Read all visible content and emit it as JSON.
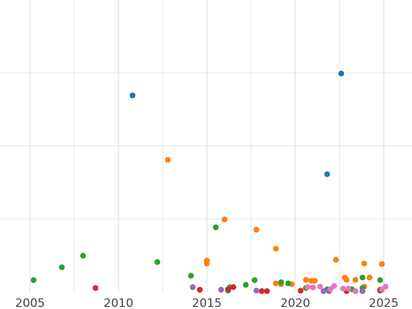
{
  "chart_data": {
    "type": "scatter",
    "xlim": [
      2003.3,
      2026.6
    ],
    "ylim": [
      0,
      1
    ],
    "grid": true,
    "x_ticks": [
      2005,
      2010,
      2015,
      2020,
      2025
    ],
    "x_tick_labels": [
      "2005",
      "2010",
      "2015",
      "2020",
      "2025"
    ],
    "y_gridlines": [
      0.25,
      0.5,
      0.75
    ],
    "legend": "none",
    "colors": {
      "blue": "#1f77b4",
      "orange": "#ff7f0e",
      "green": "#2ca02c",
      "red": "#d62728",
      "purple": "#9467bd",
      "pink": "#e377c2"
    },
    "series": [
      {
        "color": "blue",
        "points": [
          {
            "x": 2010.8,
            "y": 0.673
          },
          {
            "x": 2021.8,
            "y": 0.403
          },
          {
            "x": 2022.6,
            "y": 0.748
          }
        ]
      },
      {
        "color": "orange",
        "points": [
          {
            "x": 2012.8,
            "y": 0.452
          },
          {
            "x": 2015.0,
            "y": 0.107
          },
          {
            "x": 2015.0,
            "y": 0.097
          },
          {
            "x": 2016.0,
            "y": 0.248
          },
          {
            "x": 2017.8,
            "y": 0.213
          },
          {
            "x": 2018.9,
            "y": 0.148
          },
          {
            "x": 2018.9,
            "y": 0.029
          },
          {
            "x": 2019.2,
            "y": 0.026
          },
          {
            "x": 2019.8,
            "y": 0.026
          },
          {
            "x": 2020.6,
            "y": 0.041
          },
          {
            "x": 2020.9,
            "y": 0.038
          },
          {
            "x": 2021.1,
            "y": 0.038
          },
          {
            "x": 2022.3,
            "y": 0.11
          },
          {
            "x": 2022.8,
            "y": 0.049
          },
          {
            "x": 2022.9,
            "y": 0.041
          },
          {
            "x": 2023.4,
            "y": 0.041
          },
          {
            "x": 2023.9,
            "y": 0.018
          },
          {
            "x": 2023.9,
            "y": 0.097
          },
          {
            "x": 2024.2,
            "y": 0.049
          },
          {
            "x": 2024.9,
            "y": 0.095
          },
          {
            "x": 2024.9,
            "y": 0.007
          }
        ]
      },
      {
        "color": "green",
        "points": [
          {
            "x": 2005.2,
            "y": 0.04
          },
          {
            "x": 2006.8,
            "y": 0.084
          },
          {
            "x": 2008.0,
            "y": 0.124
          },
          {
            "x": 2012.2,
            "y": 0.102
          },
          {
            "x": 2014.1,
            "y": 0.055
          },
          {
            "x": 2015.5,
            "y": 0.221
          },
          {
            "x": 2016.2,
            "y": 0.004
          },
          {
            "x": 2016.3,
            "y": 0.016
          },
          {
            "x": 2017.2,
            "y": 0.024
          },
          {
            "x": 2017.7,
            "y": 0.04
          },
          {
            "x": 2019.2,
            "y": 0.033
          },
          {
            "x": 2019.6,
            "y": 0.029
          },
          {
            "x": 2020.6,
            "y": 0.013
          },
          {
            "x": 2021.8,
            "y": 0.008
          },
          {
            "x": 2023.2,
            "y": 0.009
          },
          {
            "x": 2023.8,
            "y": 0.049
          },
          {
            "x": 2023.8,
            "y": 0.013
          },
          {
            "x": 2024.8,
            "y": 0.04
          },
          {
            "x": 2024.8,
            "y": 0.004
          }
        ]
      },
      {
        "color": "red",
        "points": [
          {
            "x": 2008.7,
            "y": 0.013
          },
          {
            "x": 2014.6,
            "y": 0.007
          },
          {
            "x": 2016.2,
            "y": 0.009
          },
          {
            "x": 2016.5,
            "y": 0.016
          },
          {
            "x": 2018.1,
            "y": 0.002
          },
          {
            "x": 2018.4,
            "y": 0.002
          },
          {
            "x": 2020.3,
            "y": 0.004
          },
          {
            "x": 2022.9,
            "y": 0.001
          },
          {
            "x": 2024.8,
            "y": 0.007
          }
        ]
      },
      {
        "color": "purple",
        "points": [
          {
            "x": 2014.2,
            "y": 0.016
          },
          {
            "x": 2015.8,
            "y": 0.007
          },
          {
            "x": 2017.8,
            "y": 0.004
          },
          {
            "x": 2021.6,
            "y": 0.001
          },
          {
            "x": 2021.9,
            "y": 0.001
          },
          {
            "x": 2023.4,
            "y": 0.001
          },
          {
            "x": 2023.8,
            "y": 0.001
          }
        ]
      },
      {
        "color": "pink",
        "points": [
          {
            "x": 2020.7,
            "y": 0.016
          },
          {
            "x": 2021.0,
            "y": 0.015
          },
          {
            "x": 2021.4,
            "y": 0.018
          },
          {
            "x": 2022.0,
            "y": 0.01
          },
          {
            "x": 2022.2,
            "y": 0.02
          },
          {
            "x": 2022.7,
            "y": 0.011
          },
          {
            "x": 2023.0,
            "y": 0.011
          },
          {
            "x": 2023.4,
            "y": 0.002
          },
          {
            "x": 2024.9,
            "y": 0.009
          },
          {
            "x": 2025.1,
            "y": 0.018
          }
        ]
      }
    ]
  }
}
